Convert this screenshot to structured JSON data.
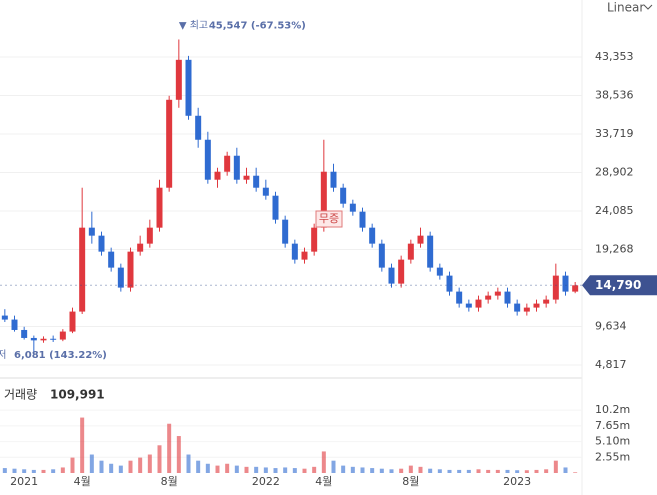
{
  "chart_data": {
    "type": "candlestick",
    "scale_label": "Linear",
    "volume_title": "거래량",
    "volume_current": {
      "value": 109991,
      "label": "109,991"
    },
    "high_marker": "▼ 최고",
    "high_label": {
      "value": 45547,
      "label": "45,547 (-67.53%)"
    },
    "low_marker": "최저",
    "low_label": {
      "value": 6081,
      "label": "6,081 (143.22%)"
    },
    "event_label": "무증",
    "current_price": {
      "value": 14790,
      "label": "14,790"
    },
    "categories": [
      null,
      null,
      "2021",
      null,
      null,
      null,
      null,
      null,
      "4월",
      null,
      null,
      null,
      null,
      null,
      null,
      null,
      null,
      "8월",
      null,
      null,
      null,
      null,
      null,
      null,
      null,
      null,
      null,
      "2022",
      null,
      null,
      null,
      null,
      null,
      "4월",
      null,
      null,
      null,
      null,
      null,
      null,
      null,
      null,
      "8월",
      null,
      null,
      null,
      null,
      null,
      null,
      null,
      null,
      null,
      null,
      "2023",
      null,
      null,
      null,
      null,
      null,
      null
    ],
    "open": [
      11000,
      10500,
      9200,
      8200,
      7900,
      8100,
      8000,
      9000,
      11500,
      22000,
      21000,
      19000,
      17000,
      14500,
      19000,
      20000,
      22000,
      27000,
      38000,
      43000,
      36000,
      33000,
      28000,
      29000,
      31000,
      28000,
      28500,
      27000,
      26000,
      23000,
      20000,
      18000,
      19000,
      22000,
      29000,
      27000,
      25000,
      24000,
      22000,
      20000,
      17000,
      15000,
      18000,
      20000,
      21000,
      17000,
      16000,
      14000,
      12500,
      12000,
      13000,
      13500,
      14000,
      12500,
      11500,
      12000,
      12500,
      13000,
      16000,
      14000
    ],
    "high": [
      11800,
      11000,
      9600,
      8500,
      8400,
      8500,
      9300,
      12000,
      27000,
      24000,
      21500,
      19500,
      17500,
      19500,
      21000,
      23000,
      28000,
      38500,
      45547,
      43500,
      37000,
      34000,
      29500,
      31500,
      32000,
      29500,
      29500,
      28000,
      26500,
      23500,
      20500,
      19500,
      22500,
      33000,
      30000,
      27500,
      25500,
      24500,
      22500,
      20500,
      17500,
      18500,
      20500,
      22000,
      21500,
      17500,
      16500,
      14500,
      13000,
      13500,
      14000,
      14500,
      14500,
      13000,
      12500,
      13000,
      13500,
      17500,
      16500,
      15200
    ],
    "low": [
      10200,
      9000,
      8000,
      6081,
      7600,
      7700,
      7800,
      8800,
      11200,
      20000,
      18500,
      16500,
      14000,
      14000,
      18500,
      19500,
      21500,
      26500,
      37000,
      35500,
      32000,
      27500,
      27000,
      28500,
      27500,
      27500,
      26500,
      25500,
      22500,
      19500,
      17500,
      17500,
      18500,
      21500,
      26500,
      24500,
      23500,
      21500,
      19500,
      16500,
      14500,
      14500,
      17500,
      19500,
      16500,
      15500,
      13500,
      12000,
      11500,
      11500,
      12500,
      13000,
      12000,
      11000,
      11000,
      11500,
      12000,
      12500,
      13500,
      13800
    ],
    "close": [
      10500,
      9200,
      8200,
      7900,
      8100,
      8000,
      9000,
      11500,
      22000,
      21000,
      19000,
      17000,
      14500,
      19000,
      20000,
      22000,
      27000,
      38000,
      43000,
      36000,
      33000,
      28000,
      29000,
      31000,
      28000,
      28500,
      27000,
      26000,
      23000,
      20000,
      18000,
      19000,
      22000,
      29000,
      27000,
      25000,
      24000,
      22000,
      20000,
      17000,
      15000,
      18000,
      20000,
      21000,
      17000,
      16000,
      14000,
      12500,
      12000,
      13000,
      13500,
      14000,
      12500,
      11500,
      12000,
      12500,
      13000,
      16000,
      14000,
      14790
    ],
    "volume": [
      800000,
      700000,
      600000,
      500000,
      500000,
      600000,
      900000,
      2500000,
      9000000,
      3000000,
      2000000,
      1500000,
      1200000,
      2000000,
      2500000,
      3000000,
      4500000,
      8000000,
      6000000,
      3000000,
      2000000,
      1500000,
      1200000,
      1500000,
      1200000,
      1000000,
      1000000,
      900000,
      800000,
      900000,
      800000,
      700000,
      1000000,
      3500000,
      2000000,
      1200000,
      1000000,
      900000,
      800000,
      700000,
      600000,
      700000,
      1200000,
      1000000,
      700000,
      600000,
      500000,
      500000,
      500000,
      600000,
      500000,
      500000,
      500000,
      450000,
      450000,
      500000,
      600000,
      2000000,
      900000,
      109991
    ],
    "up_color": "#e0383e",
    "down_color": "#2f6bd1",
    "ylim": [
      3566,
      50485
    ],
    "yticks": [
      {
        "value": 4817,
        "label": "4,817"
      },
      {
        "value": 9634,
        "label": "9,634"
      },
      {
        "value": 19268,
        "label": "19,268"
      },
      {
        "value": 24085,
        "label": "24,085"
      },
      {
        "value": 28902,
        "label": "28,902"
      },
      {
        "value": 33719,
        "label": "33,719"
      },
      {
        "value": 38536,
        "label": "38,536"
      },
      {
        "value": 43353,
        "label": "43,353"
      }
    ],
    "y2lim": [
      0,
      15100000
    ],
    "y2ticks": [
      {
        "value": 2550000,
        "label": "2.55m"
      },
      {
        "value": 5100000,
        "label": "5.10m"
      },
      {
        "value": 7650000,
        "label": "7.65m"
      },
      {
        "value": 10200000,
        "label": "10.2m"
      }
    ],
    "grid": true
  }
}
